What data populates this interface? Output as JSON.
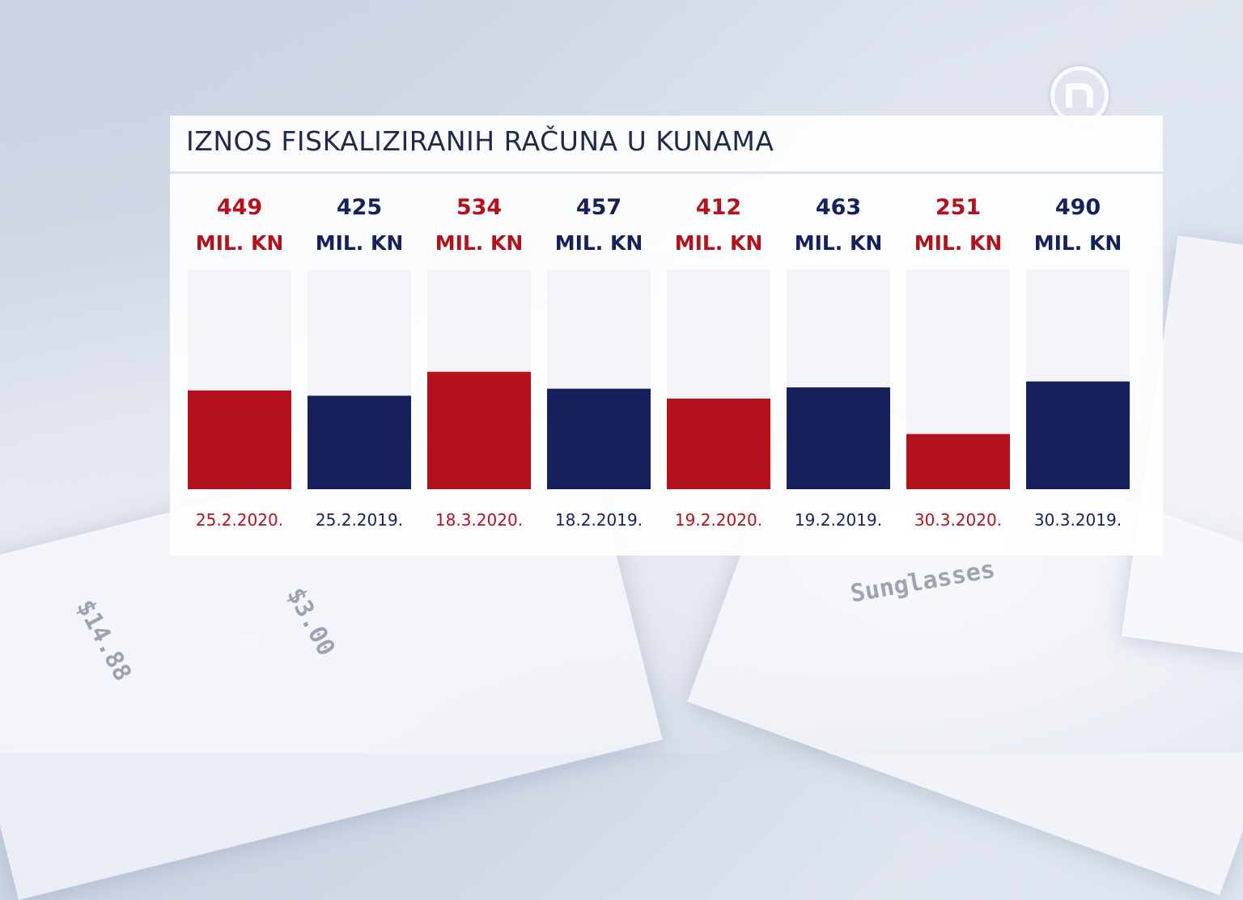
{
  "chart_data": {
    "type": "bar",
    "title": "IZNOS FISKALIZIRANIH RAČUNA U KUNAMA",
    "categories": [
      "25.2.2020.",
      "25.2.2019.",
      "18.3.2020.",
      "18.2.2019.",
      "19.2.2020.",
      "19.2.2019.",
      "30.3.2020.",
      "30.3.2019."
    ],
    "values": [
      449,
      425,
      534,
      457,
      412,
      463,
      251,
      490
    ],
    "unit": "MIL. KN",
    "ylim": [
      0,
      1000
    ],
    "colors": [
      "#b3121c",
      "#16215c",
      "#b3121c",
      "#16215c",
      "#b3121c",
      "#16215c",
      "#b3121c",
      "#16215c"
    ],
    "grid": false
  },
  "icons": {
    "logo": "n-logo"
  }
}
